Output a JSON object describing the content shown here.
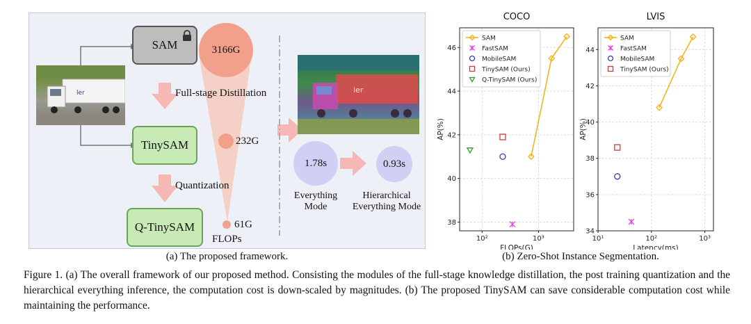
{
  "panel_a": {
    "sam_label": "SAM",
    "tinysam_label": "TinySAM",
    "qtinysam_label": "Q-TinySAM",
    "distill_label": "Full-stage Distillation",
    "quant_label": "Quantization",
    "flops_big": "3166G",
    "flops_mid": "232G",
    "flops_small": "61G",
    "flops_axis": "FLOPs",
    "time_everything": "1.78s",
    "time_hier": "0.93s",
    "mode_everything": [
      "Everything",
      "Mode"
    ],
    "mode_hier": [
      "Hierarchical",
      "Everything Mode"
    ],
    "caption": "(a) The proposed framework."
  },
  "panel_b_caption": "(b) Zero-Shot Instance Segmentation.",
  "figure_caption": "Figure 1. (a) The overall framework of our proposed method. Consisting the modules of the full-stage knowledge distillation, the post training quantization and the hierarchical everything inference, the computation cost is down-scaled by magnitudes. (b) The proposed TinySAM can save considerable computation cost while maintaining the performance.",
  "colors": {
    "sam": "#f5b010",
    "fastsam": "#e040e0",
    "mobilesam": "#3a3aa8",
    "tinysam": "#d03a3a",
    "qtinysam": "#2f9a2f",
    "salmon": "#f4a18c",
    "lavender": "#cfd0f3"
  },
  "chart_data": [
    {
      "type": "scatter",
      "title": "COCO",
      "xlabel": "FLOPs(G)",
      "ylabel": "AP(%)",
      "xscale": "log",
      "xlim": [
        40,
        4200
      ],
      "ylim": [
        37.6,
        46.9
      ],
      "yticks": [
        38,
        40,
        42,
        44,
        46
      ],
      "xticks": [
        {
          "value": 100,
          "label": "10²"
        },
        {
          "value": 1000,
          "label": "10³"
        }
      ],
      "legend": [
        "SAM",
        "FastSAM",
        "MobileSAM",
        "TinySAM (Ours)",
        "Q-TinySAM (Ours)"
      ],
      "series": [
        {
          "name": "SAM",
          "marker": "diamond",
          "line": true,
          "color": "#f5b010",
          "points": [
            {
              "x": 740,
              "y": 41.0
            },
            {
              "x": 1700,
              "y": 45.5
            },
            {
              "x": 3166,
              "y": 46.5
            }
          ]
        },
        {
          "name": "FastSAM",
          "marker": "x",
          "color": "#e040e0",
          "points": [
            {
              "x": 345,
              "y": 37.9
            }
          ]
        },
        {
          "name": "MobileSAM",
          "marker": "circle",
          "color": "#3a3aa8",
          "points": [
            {
              "x": 232,
              "y": 41.0
            }
          ]
        },
        {
          "name": "TinySAM (Ours)",
          "marker": "square",
          "color": "#d03a3a",
          "points": [
            {
              "x": 232,
              "y": 41.9
            }
          ]
        },
        {
          "name": "Q-TinySAM (Ours)",
          "marker": "triangle",
          "color": "#2f9a2f",
          "points": [
            {
              "x": 61,
              "y": 41.3
            }
          ]
        }
      ]
    },
    {
      "type": "scatter",
      "title": "LVIS",
      "xlabel": "Latency(ms)",
      "ylabel": "AP(%)",
      "xscale": "log",
      "xlim": [
        10,
        1450
      ],
      "ylim": [
        34,
        45.2
      ],
      "yticks": [
        34,
        36,
        38,
        40,
        42,
        44
      ],
      "xticks": [
        {
          "value": 10,
          "label": "10¹"
        },
        {
          "value": 100,
          "label": "10²"
        },
        {
          "value": 1000,
          "label": "10³"
        }
      ],
      "legend": [
        "SAM",
        "FastSAM",
        "MobileSAM",
        "TinySAM (Ours)"
      ],
      "series": [
        {
          "name": "SAM",
          "marker": "diamond",
          "line": true,
          "color": "#f5b010",
          "points": [
            {
              "x": 140,
              "y": 40.8
            },
            {
              "x": 360,
              "y": 43.5
            },
            {
              "x": 600,
              "y": 44.7
            }
          ]
        },
        {
          "name": "FastSAM",
          "marker": "x",
          "color": "#e040e0",
          "points": [
            {
              "x": 42,
              "y": 34.5
            }
          ]
        },
        {
          "name": "MobileSAM",
          "marker": "circle",
          "color": "#3a3aa8",
          "points": [
            {
              "x": 23,
              "y": 37.0
            }
          ]
        },
        {
          "name": "TinySAM (Ours)",
          "marker": "square",
          "color": "#d03a3a",
          "points": [
            {
              "x": 23,
              "y": 38.6
            }
          ]
        }
      ]
    }
  ]
}
